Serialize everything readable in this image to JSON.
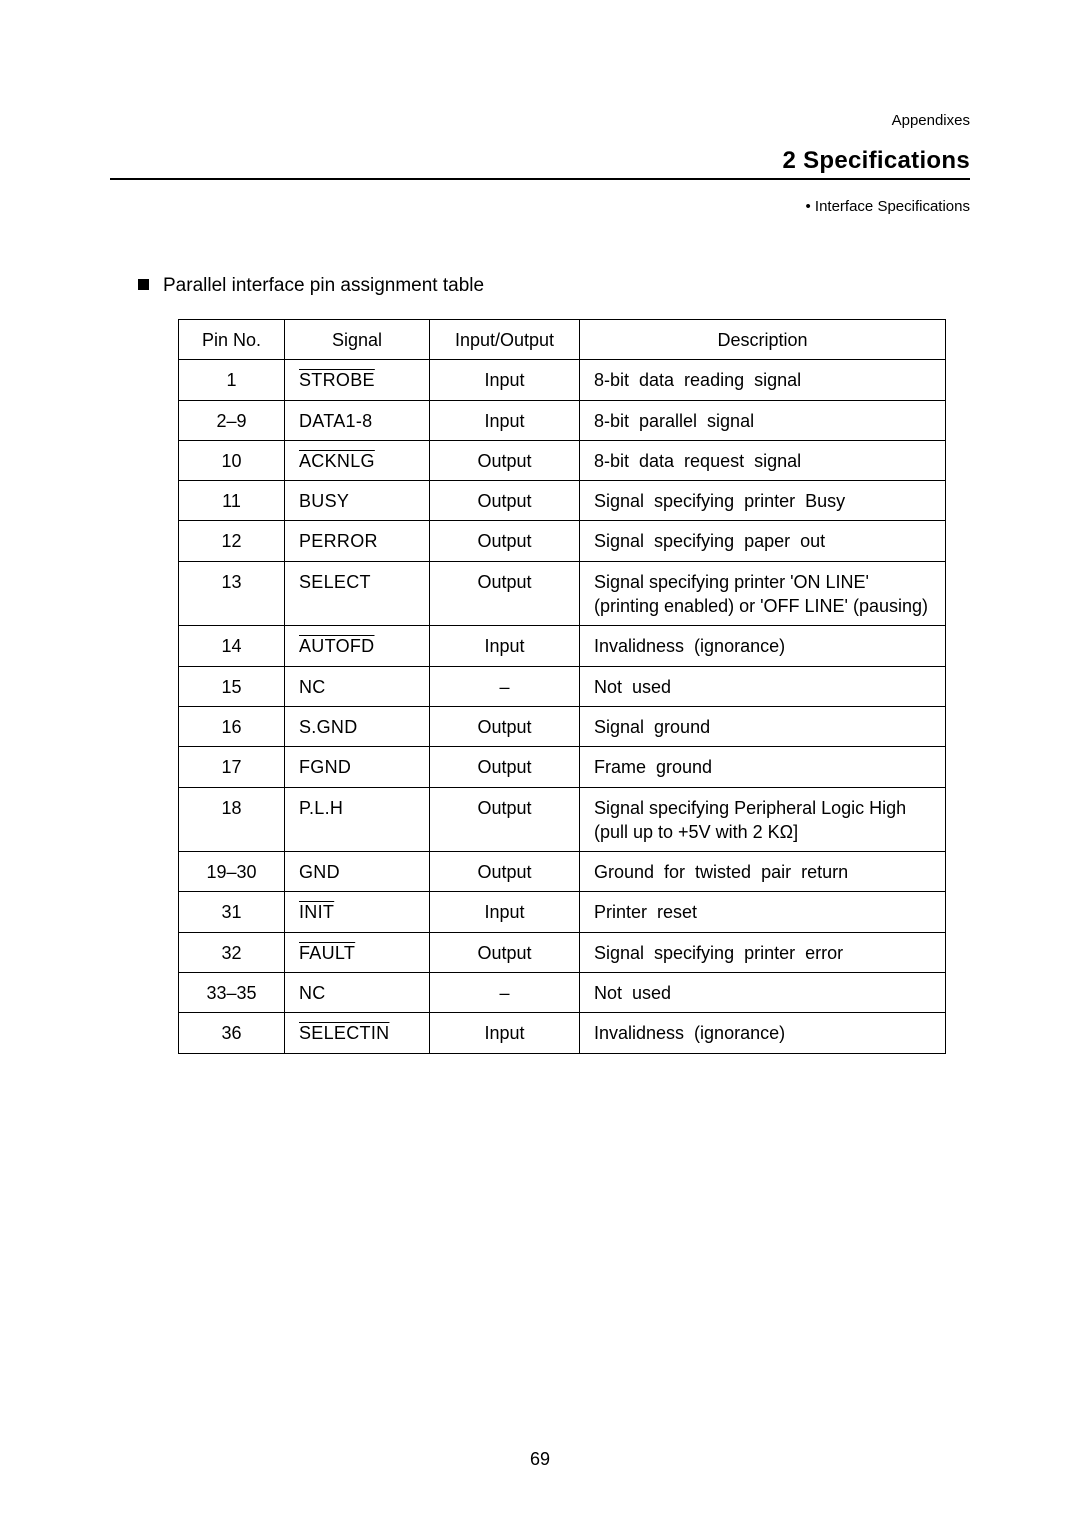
{
  "header": {
    "appendix": "Appendixes",
    "section": "2  Specifications",
    "bullet": "•  Interface Specifications"
  },
  "subheading": "Parallel interface pin assignment table",
  "table": {
    "columns": {
      "pin": "Pin  No.",
      "signal": "Signal",
      "io": "Input/Output",
      "desc": "Description"
    },
    "rows": [
      {
        "pin": "1",
        "signal": "STROBE",
        "overline": true,
        "io": "Input",
        "desc": "8-bit  data  reading  signal",
        "spaced": true
      },
      {
        "pin": "2–9",
        "signal": "DATA1-8",
        "overline": false,
        "io": "Input",
        "desc": "8-bit  parallel  signal",
        "spaced": true
      },
      {
        "pin": "10",
        "signal": "ACKNLG",
        "overline": true,
        "io": "Output",
        "desc": "8-bit  data  request  signal",
        "spaced": true
      },
      {
        "pin": "11",
        "signal": "BUSY",
        "overline": false,
        "io": "Output",
        "desc": "Signal  specifying  printer  Busy",
        "spaced": true
      },
      {
        "pin": "12",
        "signal": "PERROR",
        "overline": false,
        "io": "Output",
        "desc": "Signal  specifying  paper  out",
        "spaced": true
      },
      {
        "pin": "13",
        "signal": "SELECT",
        "overline": false,
        "io": "Output",
        "desc": "Signal specifying printer 'ON LINE' (printing enabled) or 'OFF LINE' (pausing)",
        "spaced": false
      },
      {
        "pin": "14",
        "signal": "AUTOFD",
        "overline": true,
        "io": "Input",
        "desc": "Invalidness  (ignorance)",
        "spaced": true
      },
      {
        "pin": "15",
        "signal": "NC",
        "overline": false,
        "io": "–",
        "desc": "Not  used",
        "spaced": true
      },
      {
        "pin": "16",
        "signal": "S.GND",
        "overline": false,
        "io": "Output",
        "desc": "Signal  ground",
        "spaced": true
      },
      {
        "pin": "17",
        "signal": "FGND",
        "overline": false,
        "io": "Output",
        "desc": "Frame  ground",
        "spaced": true
      },
      {
        "pin": "18",
        "signal": "P.L.H",
        "overline": false,
        "io": "Output",
        "desc": "Signal specifying Peripheral Logic High (pull up to +5V with 2 KΩ]",
        "spaced": false
      },
      {
        "pin": "19–30",
        "signal": "GND",
        "overline": false,
        "io": "Output",
        "desc": "Ground  for  twisted  pair  return",
        "spaced": true
      },
      {
        "pin": "31",
        "signal": "INIT",
        "overline": true,
        "io": "Input",
        "desc": "Printer  reset",
        "spaced": true
      },
      {
        "pin": "32",
        "signal": "FAULT",
        "overline": true,
        "io": "Output",
        "desc": "Signal  specifying  printer  error",
        "spaced": true
      },
      {
        "pin": "33–35",
        "signal": "NC",
        "overline": false,
        "io": "–",
        "desc": "Not  used",
        "spaced": true
      },
      {
        "pin": "36",
        "signal": "SELECTIN",
        "overline": true,
        "io": "Input",
        "desc": "Invalidness  (ignorance)",
        "spaced": true
      }
    ]
  },
  "page_number": "69"
}
